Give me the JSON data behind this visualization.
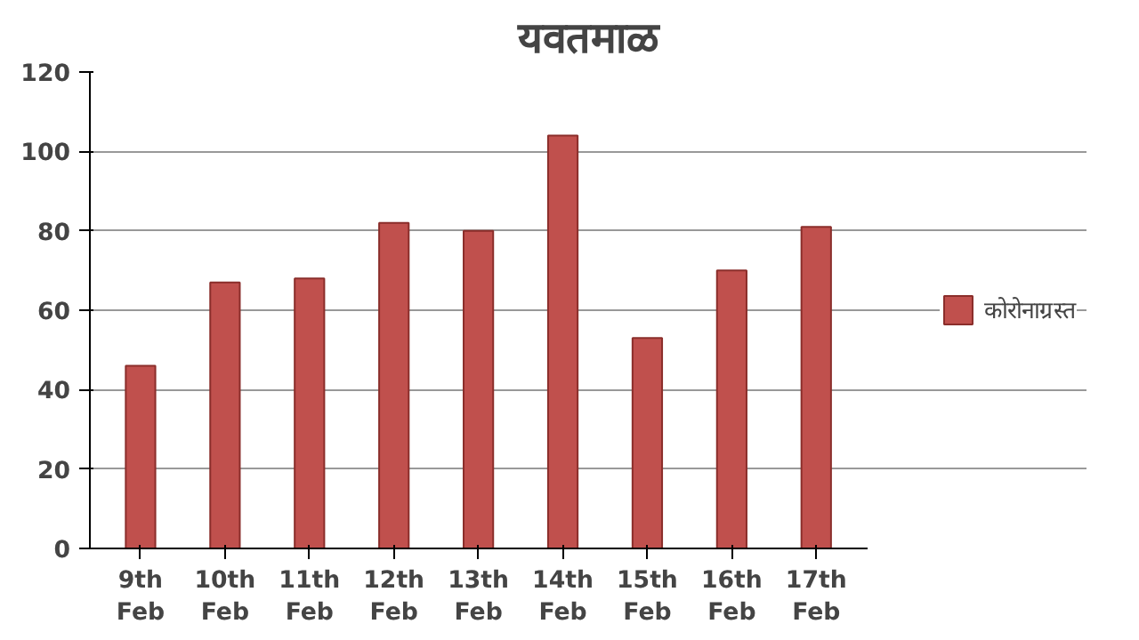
{
  "chart_data": {
    "type": "bar",
    "title": "यवतमाळ",
    "categories": [
      "9th Feb",
      "10th Feb",
      "11th Feb",
      "12th Feb",
      "13th Feb",
      "14th Feb",
      "15th Feb",
      "16th Feb",
      "17th Feb"
    ],
    "series": [
      {
        "name": "कोरोनाग्रस्त",
        "color": "#c0504d",
        "values": [
          46,
          67,
          68,
          82,
          80,
          104,
          53,
          70,
          81
        ]
      }
    ],
    "ylim": [
      0,
      120
    ],
    "yticks": [
      0,
      20,
      40,
      60,
      80,
      100,
      120
    ],
    "grid": "y",
    "legend": "right"
  }
}
